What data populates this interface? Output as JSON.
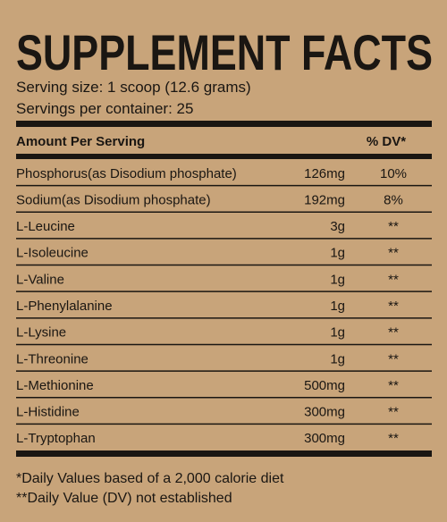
{
  "title": "SUPPLEMENT FACTS",
  "serving_size": "Serving size: 1 scoop (12.6 grams)",
  "servings_per_container": "Servings per container: 25",
  "header": {
    "amount": "Amount Per Serving",
    "dv": "% DV*"
  },
  "rows": [
    {
      "name": "Phosphorus(as Disodium phosphate)",
      "amount": "126mg",
      "dv": "10%"
    },
    {
      "name": "Sodium(as Disodium phosphate)",
      "amount": "192mg",
      "dv": "8%"
    },
    {
      "name": "L-Leucine",
      "amount": "3g",
      "dv": "**"
    },
    {
      "name": "L-Isoleucine",
      "amount": "1g",
      "dv": "**"
    },
    {
      "name": "L-Valine",
      "amount": "1g",
      "dv": "**"
    },
    {
      "name": "L-Phenylalanine",
      "amount": "1g",
      "dv": "**"
    },
    {
      "name": "L-Lysine",
      "amount": "1g",
      "dv": "**"
    },
    {
      "name": "L-Threonine",
      "amount": "1g",
      "dv": "**"
    },
    {
      "name": "L-Methionine",
      "amount": "500mg",
      "dv": "**"
    },
    {
      "name": "L-Histidine",
      "amount": "300mg",
      "dv": "**"
    },
    {
      "name": "L-Tryptophan",
      "amount": "300mg",
      "dv": "**"
    }
  ],
  "footnotes": [
    "*Daily Values based of a 2,000 calorie diet",
    "**Daily Value (DV) not established"
  ]
}
